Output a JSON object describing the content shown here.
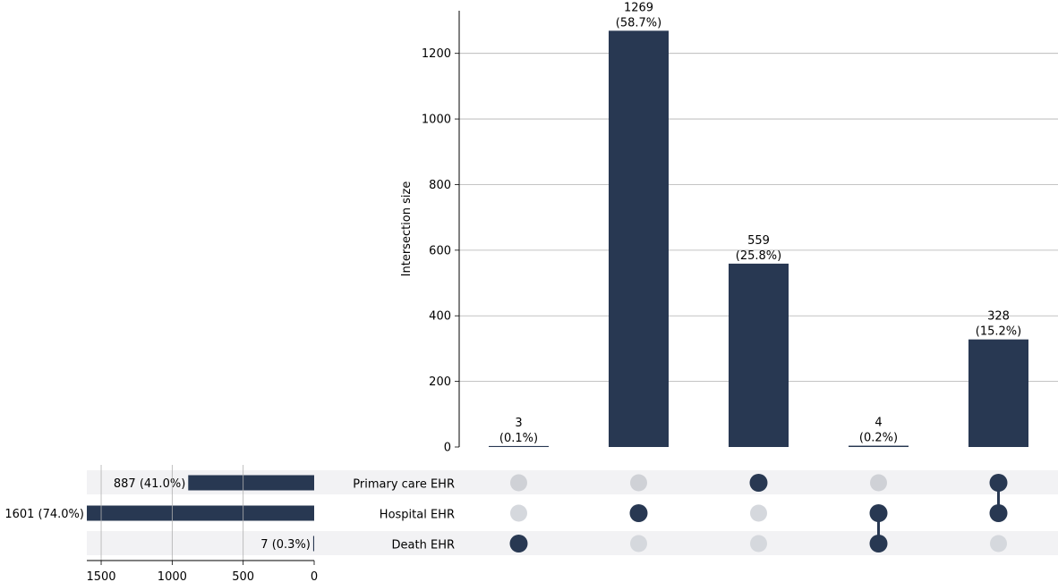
{
  "chart_data": {
    "type": "upset",
    "colors": {
      "bar": "#283852",
      "dot_active": "#283852",
      "dot_inactive_light": "#d5d8dd",
      "dot_inactive_dark": "#cfd1d6",
      "stripe": "#f2f2f4",
      "grid": "#b0b0b0"
    },
    "intersections": {
      "ylabel": "Intersection size",
      "ylim": [
        0,
        1330
      ],
      "yticks": [
        "0",
        "200",
        "400",
        "600",
        "800",
        "1000",
        "1200"
      ],
      "values": [
        3,
        1269,
        559,
        4,
        328
      ],
      "labels": [
        "3\n(0.1%)",
        "1269\n(58.7%)",
        "559\n(25.8%)",
        "4\n(0.2%)",
        "328\n(15.2%)"
      ],
      "membership": [
        [
          "Death EHR"
        ],
        [
          "Hospital EHR"
        ],
        [
          "Primary care EHR"
        ],
        [
          "Hospital EHR",
          "Death EHR"
        ],
        [
          "Primary care EHR",
          "Hospital EHR"
        ]
      ]
    },
    "sets": {
      "names": [
        "Primary care EHR",
        "Hospital EHR",
        "Death EHR"
      ],
      "values": [
        887,
        1601,
        7
      ],
      "labels": [
        "887 (41.0%)",
        "1601 (74.0%)",
        "7 (0.3%)"
      ],
      "xlim": [
        0,
        1601
      ],
      "xticks": [
        "1500",
        "1000",
        "500",
        "0"
      ]
    }
  }
}
